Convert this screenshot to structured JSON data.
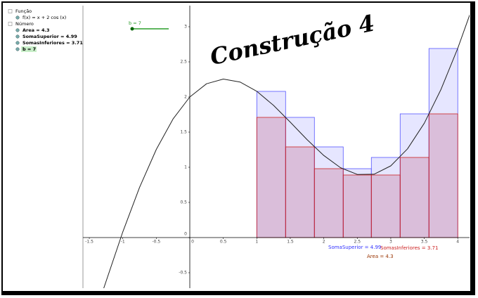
{
  "algebra": {
    "groups": [
      {
        "title": "Função",
        "items": [
          "f(x) = x + 2 cos (x)"
        ]
      },
      {
        "title": "Número",
        "items": [
          "Area = 4.3",
          "SomaSuperior = 4.99",
          "SomasInferiores = 3.71",
          "b = 7"
        ]
      }
    ]
  },
  "graph": {
    "title": "Construção 4",
    "slider": "b = 7",
    "xlim": [
      -1.595,
      4.176
    ],
    "ylim": [
      -0.72,
      3.3
    ],
    "xticks": [
      -1.5,
      -1,
      -0.5,
      0,
      0.5,
      1,
      1.5,
      2,
      2.5,
      3,
      3.5,
      4
    ],
    "yticks": [
      -0.5,
      0,
      0.5,
      1,
      1.5,
      2,
      2.5,
      3
    ],
    "bar_edges": [
      1,
      1.43,
      1.86,
      2.29,
      2.71,
      3.14,
      3.57,
      4
    ],
    "upper": [
      2.08,
      1.71,
      1.29,
      0.98,
      1.14,
      1.76,
      2.69
    ],
    "lower": [
      1.71,
      1.29,
      0.98,
      0.89,
      0.89,
      1.14,
      1.76
    ],
    "labels": [
      "SomaSuperior = 4.99",
      "SomasInferiores = 3.71",
      "Area = 4.3"
    ]
  }
}
